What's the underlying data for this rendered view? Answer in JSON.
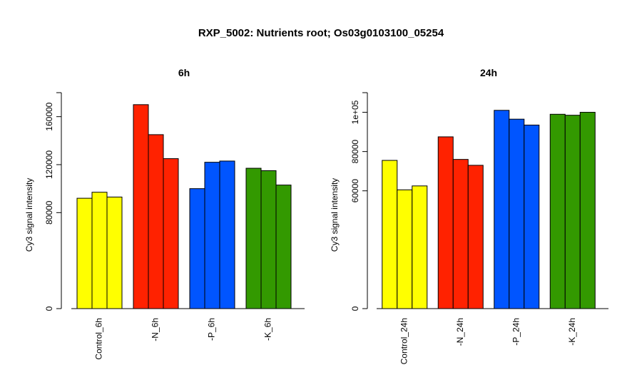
{
  "title": "RXP_5002: Nutrients root; Os03g0103100_05254",
  "chart_data": [
    {
      "type": "bar",
      "title": "6h",
      "ylabel": "Cy3 signal intensity",
      "categories": [
        "Control_6h",
        "-N_6h",
        "-P_6h",
        "-K_6h"
      ],
      "colors": [
        "#ffff00",
        "#ff2200",
        "#0055ff",
        "#339900"
      ],
      "values": [
        [
          92000,
          97000,
          93000
        ],
        [
          170000,
          145000,
          125000
        ],
        [
          100000,
          122000,
          123000
        ],
        [
          117000,
          115000,
          103000
        ]
      ],
      "yticks": [
        0,
        80000,
        120000,
        160000
      ],
      "tick_labels": [
        "0",
        "80000",
        "120000",
        "160000"
      ],
      "ylim": [
        0,
        180000
      ]
    },
    {
      "type": "bar",
      "title": "24h",
      "ylabel": "Cy3 signal intensity",
      "categories": [
        "Control_24h",
        "-N_24h",
        "-P_24h",
        "-K_24h"
      ],
      "colors": [
        "#ffff00",
        "#ff2200",
        "#0055ff",
        "#339900"
      ],
      "values": [
        [
          75500,
          60500,
          62500
        ],
        [
          87500,
          76000,
          73000
        ],
        [
          101000,
          96500,
          93500
        ],
        [
          99000,
          98500,
          100000
        ]
      ],
      "yticks": [
        0,
        60000,
        80000,
        100000
      ],
      "tick_labels": [
        "0",
        "60000",
        "80000",
        "1e+05"
      ],
      "ylim": [
        0,
        110000
      ]
    }
  ]
}
